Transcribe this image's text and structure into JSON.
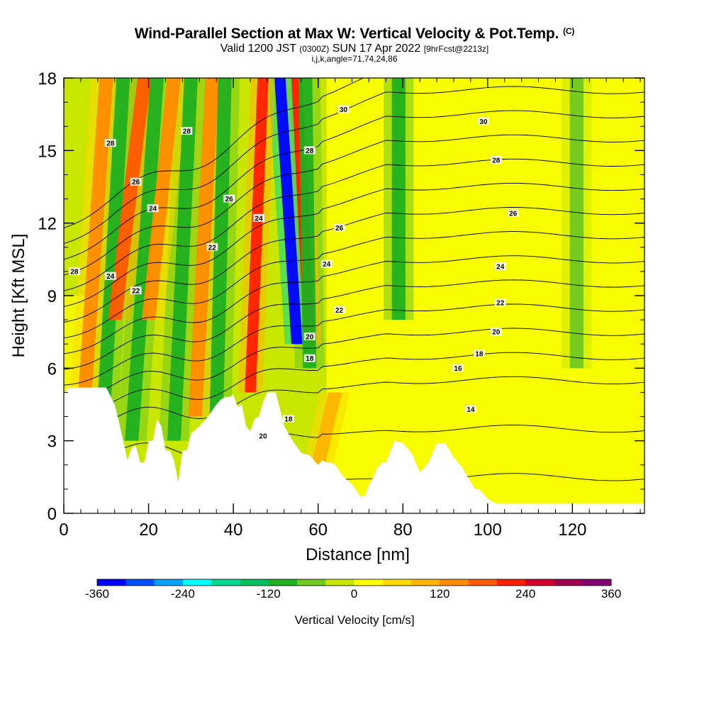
{
  "title": {
    "main": "Wind-Parallel Section at Max W: Vertical Velocity & Pot.Temp.",
    "copyright": "(C)",
    "valid_prefix": "Valid 1200 JST",
    "valid_utc": "(0300Z)",
    "valid_date": "SUN 17 Apr 2022",
    "forecast": "[9hrFcst@2213z]",
    "section_info": "i,j,k,angle=71,74,24,86"
  },
  "chart_data": {
    "type": "heatmap",
    "xlabel": "Distance [nm]",
    "ylabel": "Height [Kft MSL]",
    "xlim": [
      0,
      137
    ],
    "ylim": [
      0,
      18
    ],
    "x_ticks": [
      0,
      20,
      40,
      60,
      80,
      100,
      120
    ],
    "y_ticks": [
      0,
      3,
      6,
      9,
      12,
      15,
      18
    ],
    "grid": false,
    "colorbar": {
      "label": "Vertical Velocity [cm/s]",
      "ticks": [
        -360,
        -240,
        -120,
        0,
        120,
        240,
        360
      ],
      "range": [
        -360,
        360
      ],
      "colors": [
        "#0000ff",
        "#0050ff",
        "#00a0ff",
        "#00ffff",
        "#00d890",
        "#00c060",
        "#20b020",
        "#70c820",
        "#c8e600",
        "#ffff00",
        "#ffd800",
        "#ffb400",
        "#ff8c00",
        "#ff5a00",
        "#ff1e00",
        "#d0002a",
        "#a00050",
        "#800070"
      ]
    },
    "terrain_profile": {
      "x": [
        0,
        1,
        4,
        8,
        10,
        12,
        13,
        14,
        15,
        16,
        17,
        18,
        19,
        20,
        21,
        22,
        23,
        24,
        25,
        26,
        27,
        28,
        29,
        30,
        32,
        34,
        36,
        37,
        38,
        39,
        40,
        41,
        42,
        43,
        44,
        45,
        46,
        47,
        48,
        50,
        52,
        54,
        56,
        58,
        60,
        61,
        62,
        63,
        64,
        66,
        68,
        70,
        71,
        72,
        73,
        74,
        75,
        76,
        78,
        80,
        82,
        84,
        86,
        88,
        90,
        92,
        94,
        96,
        97,
        98,
        100,
        102,
        104,
        106,
        110,
        114,
        118,
        122,
        126,
        130,
        134,
        137
      ],
      "height": [
        4.9,
        5.2,
        5.2,
        5.2,
        5.2,
        4.5,
        3.8,
        3.0,
        2.2,
        2.7,
        2.8,
        2.1,
        2.1,
        3.0,
        3.0,
        3.9,
        3.6,
        2.6,
        2.6,
        2.2,
        1.3,
        2.6,
        2.6,
        3.3,
        3.6,
        4.0,
        4.5,
        4.7,
        4.8,
        4.8,
        4.9,
        4.4,
        4.5,
        3.6,
        3.4,
        3.9,
        4.0,
        4.6,
        5.0,
        5.0,
        3.6,
        3.0,
        2.5,
        2.4,
        2.0,
        2.2,
        2.1,
        2.1,
        2.0,
        1.5,
        1.2,
        0.7,
        0.7,
        1.2,
        1.5,
        1.9,
        2.1,
        2.1,
        3.0,
        2.9,
        2.5,
        1.7,
        2.1,
        2.9,
        2.9,
        2.3,
        1.9,
        1.3,
        1.0,
        1.0,
        0.6,
        0.4,
        0.4,
        0.4,
        0.4,
        0.4,
        0.4,
        0.4,
        0.4,
        0.4,
        0.4,
        0.4
      ]
    },
    "updraft_bands": [
      {
        "x_top": 10,
        "x_bottom": 5,
        "y_from": 5,
        "y_to": 18,
        "w": 120
      },
      {
        "x_top": 14,
        "x_bottom": 9,
        "y_from": 3,
        "y_to": 18,
        "w": -100
      },
      {
        "x_top": 19,
        "x_bottom": 12,
        "y_from": 8,
        "y_to": 18,
        "w": 180
      },
      {
        "x_top": 22,
        "x_bottom": 16,
        "y_from": 3,
        "y_to": 18,
        "w": -110
      },
      {
        "x_top": 26,
        "x_bottom": 20,
        "y_from": 8,
        "y_to": 18,
        "w": 150
      },
      {
        "x_top": 30,
        "x_bottom": 26,
        "y_from": 3,
        "y_to": 18,
        "w": -120
      },
      {
        "x_top": 35,
        "x_bottom": 31,
        "y_from": 4,
        "y_to": 18,
        "w": 120
      },
      {
        "x_top": 38,
        "x_bottom": 36,
        "y_from": 4,
        "y_to": 18,
        "w": -110
      },
      {
        "x_top": 47,
        "x_bottom": 44,
        "y_from": 5,
        "y_to": 18,
        "w": 230
      },
      {
        "x_top": 51,
        "x_bottom": 55,
        "y_from": 7,
        "y_to": 18,
        "w": -330
      },
      {
        "x_top": 55,
        "x_bottom": 58,
        "y_from": 7,
        "y_to": 18,
        "w": 210
      },
      {
        "x_top": 57,
        "x_bottom": 58,
        "y_from": 6,
        "y_to": 18,
        "w": -120
      },
      {
        "x_top": 64,
        "x_bottom": 60,
        "y_from": 2,
        "y_to": 5,
        "w": 90
      },
      {
        "x_top": 79,
        "x_bottom": 79,
        "y_from": 8,
        "y_to": 18,
        "w": -110
      },
      {
        "x_top": 121,
        "x_bottom": 121,
        "y_from": 6,
        "y_to": 18,
        "w": -80
      }
    ],
    "potential_temperature_labels": [
      {
        "text": "28",
        "x": 11,
        "y": 15.3
      },
      {
        "text": "26",
        "x": 17,
        "y": 13.7
      },
      {
        "text": "24",
        "x": 21,
        "y": 12.6
      },
      {
        "text": "28",
        "x": 2.5,
        "y": 10.0
      },
      {
        "text": "24",
        "x": 11,
        "y": 9.8
      },
      {
        "text": "22",
        "x": 17,
        "y": 9.2
      },
      {
        "text": "28",
        "x": 29,
        "y": 15.8
      },
      {
        "text": "26",
        "x": 39,
        "y": 13.0
      },
      {
        "text": "22",
        "x": 35,
        "y": 11.0
      },
      {
        "text": "24",
        "x": 46,
        "y": 12.2
      },
      {
        "text": "30",
        "x": 66,
        "y": 16.7
      },
      {
        "text": "28",
        "x": 58,
        "y": 15.0
      },
      {
        "text": "26",
        "x": 65,
        "y": 11.8
      },
      {
        "text": "24",
        "x": 62,
        "y": 10.3
      },
      {
        "text": "22",
        "x": 65,
        "y": 8.4
      },
      {
        "text": "20",
        "x": 58,
        "y": 7.3
      },
      {
        "text": "18",
        "x": 58,
        "y": 6.4
      },
      {
        "text": "18",
        "x": 53,
        "y": 3.9
      },
      {
        "text": "20",
        "x": 47,
        "y": 3.2
      },
      {
        "text": "30",
        "x": 99,
        "y": 16.2
      },
      {
        "text": "28",
        "x": 102,
        "y": 14.6
      },
      {
        "text": "26",
        "x": 106,
        "y": 12.4
      },
      {
        "text": "24",
        "x": 103,
        "y": 10.2
      },
      {
        "text": "22",
        "x": 103,
        "y": 8.7
      },
      {
        "text": "20",
        "x": 102,
        "y": 7.5
      },
      {
        "text": "18",
        "x": 98,
        "y": 6.6
      },
      {
        "text": "16",
        "x": 93,
        "y": 6.0
      },
      {
        "text": "14",
        "x": 96,
        "y": 4.3
      }
    ],
    "potential_temperature_levels": [
      14,
      16,
      18,
      19,
      20,
      21,
      22,
      23,
      24,
      25,
      26,
      27,
      28,
      29,
      30,
      31
    ]
  }
}
